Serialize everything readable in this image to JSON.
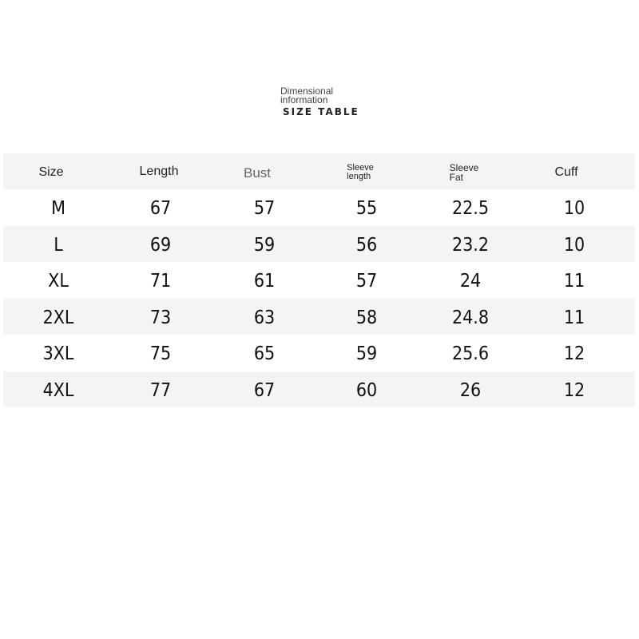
{
  "title": {
    "line1": "Dimensional",
    "line2": "information",
    "main": "SIZE TABLE"
  },
  "table": {
    "headers": [
      "Size",
      "Length",
      "Bust",
      "Sleeve length",
      "Sleeve Fat",
      "Cuff"
    ],
    "header_lines": {
      "sleeve_length": [
        "Sleeve",
        "length"
      ],
      "sleeve_fat": [
        "Sleeve",
        "Fat"
      ]
    },
    "rows": [
      [
        "M",
        "67",
        "57",
        "55",
        "22.5",
        "10"
      ],
      [
        "L",
        "69",
        "59",
        "56",
        "23.2",
        "10"
      ],
      [
        "XL",
        "71",
        "61",
        "57",
        "24",
        "11"
      ],
      [
        "2XL",
        "73",
        "63",
        "58",
        "24.8",
        "11"
      ],
      [
        "3XL",
        "75",
        "65",
        "59",
        "25.6",
        "12"
      ],
      [
        "4XL",
        "77",
        "67",
        "60",
        "26",
        "12"
      ]
    ]
  },
  "colors": {
    "band": "#f4f4f4",
    "text": "#111111"
  }
}
